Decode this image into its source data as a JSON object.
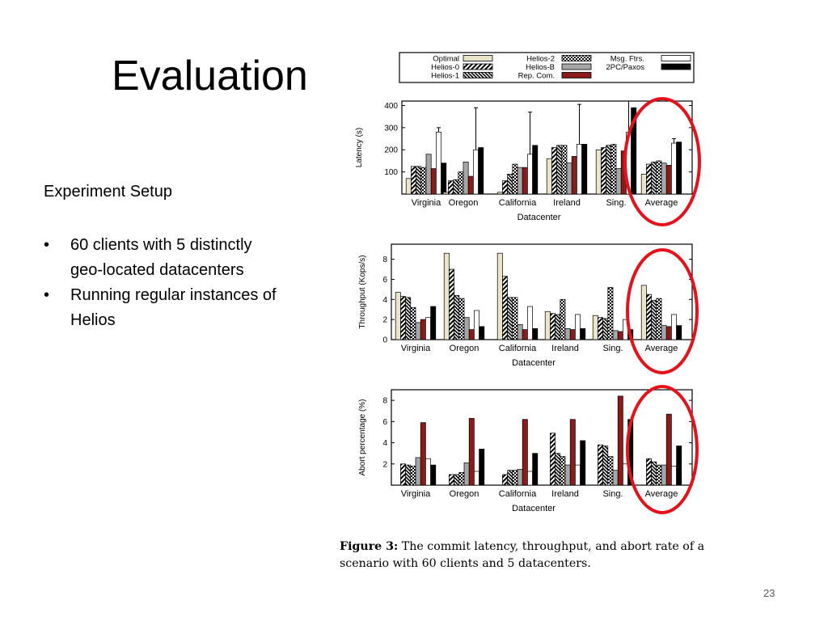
{
  "slide": {
    "title": "Evaluation",
    "setup_heading": "Experiment Setup",
    "bullets": [
      "60 clients with 5 distinctly geo-located datacenters",
      "Running regular instances of Helios"
    ],
    "caption_label": "Figure 3:",
    "caption_text": "The commit latency, throughput, and abort rate of a scenario with 60 clients and 5 datacenters.",
    "page_number": "23"
  },
  "colors": {
    "highlight_circle": "#e5121b",
    "rep_com": "#8b1a1a",
    "optimal": "#ece4c8",
    "helios_b": "#a6a6a6",
    "paxos": "#000000"
  },
  "legend": {
    "entries": [
      {
        "name": "Optimal",
        "fill": "optimal"
      },
      {
        "name": "Helios-0",
        "fill": "hatch_diag"
      },
      {
        "name": "Helios-1",
        "fill": "hatch_dense"
      },
      {
        "name": "Helios-2",
        "fill": "checker"
      },
      {
        "name": "Helios-B",
        "fill": "helios_b"
      },
      {
        "name": "Rep. Com.",
        "fill": "rep_com"
      },
      {
        "name": "Msg. Ftrs.",
        "fill": "white"
      },
      {
        "name": "2PC/Paxos",
        "fill": "paxos"
      }
    ]
  },
  "chart_data": [
    {
      "type": "bar",
      "ylabel": "Latency (s)",
      "xlabel": "Datacenter",
      "ylim": [
        0,
        420
      ],
      "yticks": [
        100,
        200,
        300,
        400
      ],
      "categories": [
        "Virginia",
        "Oregon",
        "California",
        "Ireland",
        "Sing.",
        "Average"
      ],
      "series": [
        {
          "name": "Optimal",
          "values": [
            70,
            8,
            8,
            160,
            200,
            90
          ]
        },
        {
          "name": "Helios-0",
          "values": [
            125,
            60,
            60,
            210,
            210,
            135
          ]
        },
        {
          "name": "Helios-1",
          "values": [
            125,
            65,
            90,
            220,
            220,
            145
          ]
        },
        {
          "name": "Helios-2",
          "values": [
            120,
            100,
            135,
            220,
            225,
            150
          ]
        },
        {
          "name": "Helios-B",
          "values": [
            180,
            145,
            120,
            140,
            115,
            140
          ]
        },
        {
          "name": "Rep. Com.",
          "values": [
            115,
            80,
            120,
            170,
            195,
            130
          ]
        },
        {
          "name": "Msg. Ftrs.",
          "values": [
            280,
            200,
            180,
            225,
            280,
            230
          ]
        },
        {
          "name": "2PC/Paxos",
          "values": [
            140,
            210,
            220,
            225,
            390,
            235
          ]
        }
      ],
      "error_bar_tops": [
        300,
        390,
        370,
        405,
        420,
        250
      ]
    },
    {
      "type": "bar",
      "ylabel": "Throughput (Kops/s)",
      "xlabel": "Datacenter",
      "ylim": [
        0,
        9.5
      ],
      "yticks": [
        0,
        2,
        4,
        6,
        8
      ],
      "categories": [
        "Virginia",
        "Oregon",
        "California",
        "Ireland",
        "Sing.",
        "Average"
      ],
      "series": [
        {
          "name": "Optimal",
          "values": [
            4.7,
            8.6,
            8.6,
            2.8,
            2.4,
            5.4
          ]
        },
        {
          "name": "Helios-0",
          "values": [
            4.3,
            7.0,
            6.3,
            2.6,
            2.2,
            4.5
          ]
        },
        {
          "name": "Helios-1",
          "values": [
            4.2,
            4.4,
            4.2,
            2.5,
            2.1,
            3.9
          ]
        },
        {
          "name": "Helios-2",
          "values": [
            3.2,
            4.1,
            4.2,
            4.0,
            5.2,
            4.1
          ]
        },
        {
          "name": "Helios-B",
          "values": [
            1.7,
            2.2,
            1.5,
            1.1,
            0.9,
            1.4
          ]
        },
        {
          "name": "Rep. Com.",
          "values": [
            2.0,
            1.0,
            1.0,
            1.0,
            0.8,
            1.3
          ]
        },
        {
          "name": "Msg. Ftrs.",
          "values": [
            2.2,
            2.9,
            3.3,
            2.5,
            2.0,
            2.5
          ]
        },
        {
          "name": "2PC/Paxos",
          "values": [
            3.3,
            1.3,
            1.1,
            1.1,
            1.0,
            1.4
          ]
        }
      ]
    },
    {
      "type": "bar",
      "ylabel": "Abort percentage (%)",
      "xlabel": "Datacenter",
      "ylim": [
        0,
        9
      ],
      "yticks": [
        2,
        4,
        6,
        8
      ],
      "categories": [
        "Virginia",
        "Oregon",
        "California",
        "Ireland",
        "Sing.",
        "Average"
      ],
      "series": [
        {
          "name": "Optimal",
          "values": [
            0,
            0,
            0,
            0,
            0,
            0
          ]
        },
        {
          "name": "Helios-0",
          "values": [
            2.0,
            1.0,
            1.0,
            4.9,
            3.8,
            2.5
          ]
        },
        {
          "name": "Helios-1",
          "values": [
            1.9,
            1.0,
            1.4,
            3.0,
            3.7,
            2.2
          ]
        },
        {
          "name": "Helios-2",
          "values": [
            1.8,
            1.2,
            1.4,
            2.7,
            2.7,
            1.9
          ]
        },
        {
          "name": "Helios-B",
          "values": [
            2.6,
            2.1,
            1.5,
            1.9,
            1.4,
            1.9
          ]
        },
        {
          "name": "Rep. Com.",
          "values": [
            5.9,
            6.3,
            6.2,
            6.2,
            8.4,
            6.7
          ]
        },
        {
          "name": "Msg. Ftrs.",
          "values": [
            2.5,
            1.3,
            1.3,
            1.9,
            2.0,
            1.8
          ]
        },
        {
          "name": "2PC/Paxos",
          "values": [
            1.9,
            3.4,
            3.0,
            4.2,
            6.2,
            3.7
          ]
        }
      ]
    }
  ]
}
